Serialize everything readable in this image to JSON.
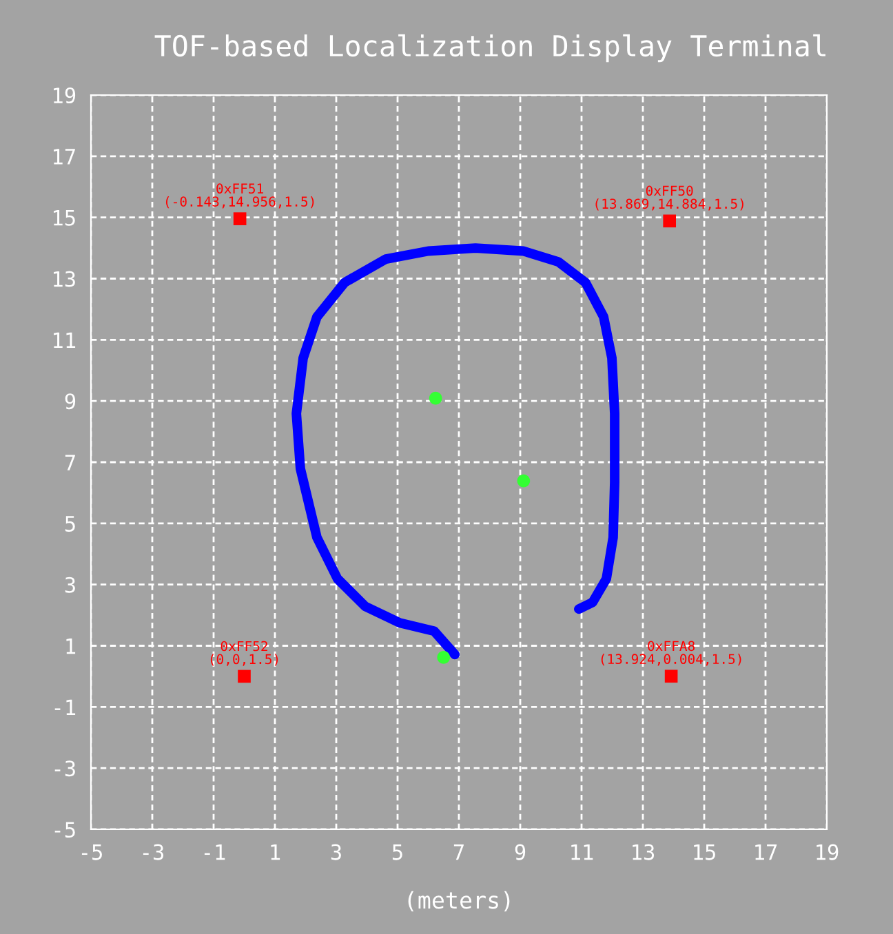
{
  "chart_data": {
    "type": "line",
    "title": "TOF-based Localization Display Terminal",
    "xlabel": "(meters)",
    "xlim": [
      -5,
      19
    ],
    "ylim": [
      -5,
      19
    ],
    "xticks": [
      -5,
      -3,
      -1,
      1,
      3,
      5,
      7,
      9,
      11,
      13,
      15,
      17,
      19
    ],
    "yticks": [
      -5,
      -3,
      -1,
      1,
      3,
      5,
      7,
      9,
      11,
      13,
      15,
      17,
      19
    ],
    "grid": true,
    "series": [
      {
        "color": "#0000ff",
        "marker": "none",
        "x": [
          6.87,
          6.19,
          5.07,
          3.94,
          3.04,
          2.37,
          1.83,
          1.7,
          1.92,
          2.37,
          3.27,
          4.62,
          6.0,
          7.54,
          9.11,
          10.24,
          11.13,
          11.72,
          11.99,
          12.08,
          12.08,
          12.03,
          11.81,
          11.36,
          10.91
        ],
        "values": [
          0.71,
          1.48,
          1.75,
          2.29,
          3.19,
          4.54,
          6.79,
          8.59,
          10.4,
          11.75,
          12.87,
          13.64,
          13.9,
          14.0,
          13.9,
          13.55,
          12.87,
          11.75,
          10.4,
          8.59,
          6.34,
          4.54,
          3.19,
          2.42,
          2.2
        ]
      },
      {
        "type": "scatter",
        "color": "#ff0000",
        "marker": "square",
        "x": [
          -0.143,
          13.869,
          0,
          13.924
        ],
        "values": [
          14.956,
          14.884,
          0,
          0.004
        ]
      },
      {
        "type": "scatter",
        "color": "#33ff33",
        "marker": "circle",
        "x": [
          6.24,
          9.11,
          6.5
        ],
        "values": [
          9.09,
          6.39,
          0.62
        ]
      }
    ],
    "annotations": [
      {
        "text": "0xFF51\n(-0.143,14.956,1.5)",
        "x": -0.143,
        "y": 14.956
      },
      {
        "text": "0xFF50\n(13.869,14.884,1.5)",
        "x": 13.869,
        "y": 14.884
      },
      {
        "text": "0xFF52\n(0,0,1.5)",
        "x": 0,
        "y": 0
      },
      {
        "text": "0xFFA8\n(13.924,0.004,1.5)",
        "x": 13.924,
        "y": 0.004
      }
    ]
  }
}
